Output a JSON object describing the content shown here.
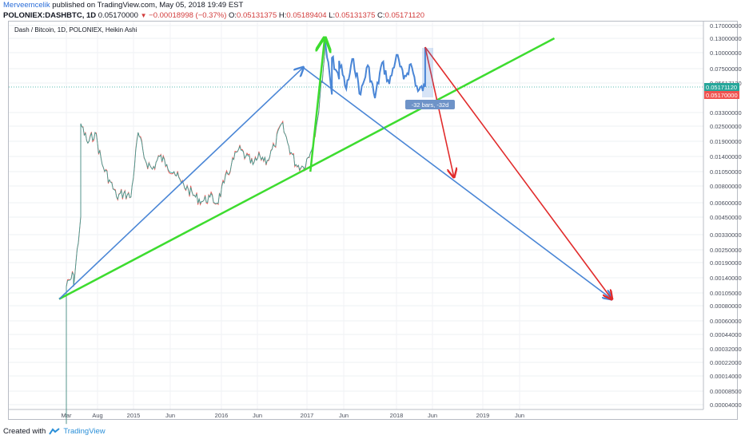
{
  "header": {
    "author": "Merveemcelik",
    "published_text": "published on TradingView.com, May 05, 2018 19:49 EST",
    "symbol": "POLONIEX:DASHBTC, 1D",
    "last": "0.05170000",
    "change": "−0.00018998 (−0.37%)",
    "ohlc": [
      {
        "label": "O:",
        "value": "0.05131375"
      },
      {
        "label": "H:",
        "value": "0.05189404"
      },
      {
        "label": "L:",
        "value": "0.05131375"
      },
      {
        "label": "C:",
        "value": "0.05171120"
      }
    ]
  },
  "footer": {
    "created_with": "Created with",
    "brand": "TradingView"
  },
  "colors": {
    "green": "#3ddc2f",
    "blue": "#4a86d6",
    "red": "#e12b2b",
    "candle_up": "#26a69a",
    "candle_down": "#ef5350"
  },
  "chart_data": {
    "type": "candlestick",
    "title": "Dash / Bitcoin, 1D, POLONIEX, Heikin Ashi",
    "x_ticks": [
      "Mar",
      "Aug",
      "2015",
      "Jun",
      "2016",
      "Jun",
      "2017",
      "Jun",
      "2018",
      "Jun",
      "2019",
      "Jun"
    ],
    "y_scale": "log",
    "y_ticks": [
      "0.17000000",
      "0.13000000",
      "0.10000000",
      "0.07500000",
      "0.05617120",
      "0.05171120",
      "0.05170000",
      "0.03300000",
      "0.02500000",
      "0.01900000",
      "0.01400000",
      "0.01050000",
      "0.00800000",
      "0.00600000",
      "0.00450000",
      "0.00330000",
      "0.00250000",
      "0.00190000",
      "0.00140000",
      "0.00105000",
      "0.00080000",
      "0.00060000",
      "0.00044000",
      "0.00032000",
      "0.00022000",
      "0.00014000",
      "0.00008500",
      "0.00004000"
    ],
    "price_labels": [
      {
        "value": "0.05171120",
        "color": "#26a69a"
      },
      {
        "value": "0.05170000",
        "color": "#ef5350"
      }
    ],
    "price_path": [
      [
        "Mar 2014",
        9e-05
      ],
      [
        "Mar 2014",
        0.00025
      ],
      [
        "Mar 2014",
        0.0012
      ],
      [
        "Apr 2014",
        0.0015
      ],
      [
        "Apr 2014",
        0.0012
      ],
      [
        "May 2014",
        0.0045
      ],
      [
        "May 2014",
        0.026
      ],
      [
        "Jun 2014",
        0.018
      ],
      [
        "Jul 2014",
        0.022
      ],
      [
        "Aug 2014",
        0.012
      ],
      [
        "Sep 2014",
        0.009
      ],
      [
        "Oct 2014",
        0.0065
      ],
      [
        "Nov 2014",
        0.007
      ],
      [
        "Dec 2014",
        0.0065
      ],
      [
        "Jan 2015",
        0.022
      ],
      [
        "Feb 2015",
        0.013
      ],
      [
        "Mar 2015",
        0.011
      ],
      [
        "Apr 2015",
        0.014
      ],
      [
        "May 2015",
        0.012
      ],
      [
        "Jun 2015",
        0.0105
      ],
      [
        "Jul 2015",
        0.0085
      ],
      [
        "Aug 2015",
        0.0075
      ],
      [
        "Sep 2015",
        0.0065
      ],
      [
        "Oct 2015",
        0.006
      ],
      [
        "Nov 2015",
        0.0065
      ],
      [
        "Dec 2015",
        0.0058
      ],
      [
        "Jan 2016",
        0.0085
      ],
      [
        "Feb 2016",
        0.012
      ],
      [
        "Mar 2016",
        0.016
      ],
      [
        "Apr 2016",
        0.014
      ],
      [
        "May 2016",
        0.012
      ],
      [
        "Jun 2016",
        0.014
      ],
      [
        "Jul 2016",
        0.013
      ],
      [
        "Aug 2016",
        0.017
      ],
      [
        "Sep 2016",
        0.026
      ],
      [
        "Oct 2016",
        0.017
      ],
      [
        "Nov 2016",
        0.012
      ],
      [
        "Dec 2016",
        0.0115
      ],
      [
        "Jan 2017",
        0.015
      ],
      [
        "Feb 2017",
        0.028
      ],
      [
        "Mar 2017",
        0.095
      ],
      [
        "Mar 2017",
        0.13
      ]
    ],
    "heikin_ashi_line": [
      [
        "Mar 2017",
        0.13
      ],
      [
        "Apr 2017",
        0.045
      ],
      [
        "Apr 2017",
        0.09
      ],
      [
        "May 2017",
        0.06
      ],
      [
        "May 2017",
        0.085
      ],
      [
        "Jun 2017",
        0.05
      ],
      [
        "Jul 2017",
        0.088
      ],
      [
        "Aug 2017",
        0.045
      ],
      [
        "Sep 2017",
        0.078
      ],
      [
        "Oct 2017",
        0.042
      ],
      [
        "Nov 2017",
        0.082
      ],
      [
        "Dec 2017",
        0.055
      ],
      [
        "Jan 2018",
        0.095
      ],
      [
        "Feb 2018",
        0.06
      ],
      [
        "Mar 2018",
        0.08
      ],
      [
        "Apr 2018",
        0.048
      ],
      [
        "May 2018",
        0.052
      ],
      [
        "May 2018",
        0.11
      ]
    ],
    "drawings": [
      {
        "name": "green-trend-line",
        "color": "green",
        "from": [
          "Feb 2014",
          0.00095
        ],
        "to": [
          "Nov 2019",
          0.13
        ]
      },
      {
        "name": "blue-upper-arrow",
        "color": "blue",
        "from": [
          "Feb 2014",
          0.00095
        ],
        "to": [
          "Dec 2016",
          0.075
        ],
        "arrow": true
      },
      {
        "name": "blue-lower-arrow",
        "color": "blue",
        "from": [
          "Dec 2016",
          0.075
        ],
        "to": [
          "Jul 2020",
          0.00095
        ],
        "arrow": true
      },
      {
        "name": "green-up-arrow",
        "color": "green",
        "from": [
          "Jan 2017",
          0.0105
        ],
        "to": [
          "Mar 2017",
          0.13
        ],
        "arrow": true
      },
      {
        "name": "red-short-arrow",
        "color": "red",
        "from": [
          "May 2018",
          0.11
        ],
        "to": [
          "Sep 2018",
          0.0095
        ],
        "arrow": true
      },
      {
        "name": "red-long-arrow",
        "color": "red",
        "from": [
          "May 2018",
          0.11
        ],
        "to": [
          "Jul 2020",
          0.00095
        ],
        "arrow": true
      }
    ],
    "range_label": "-32 bars, -32d",
    "grid": true
  }
}
